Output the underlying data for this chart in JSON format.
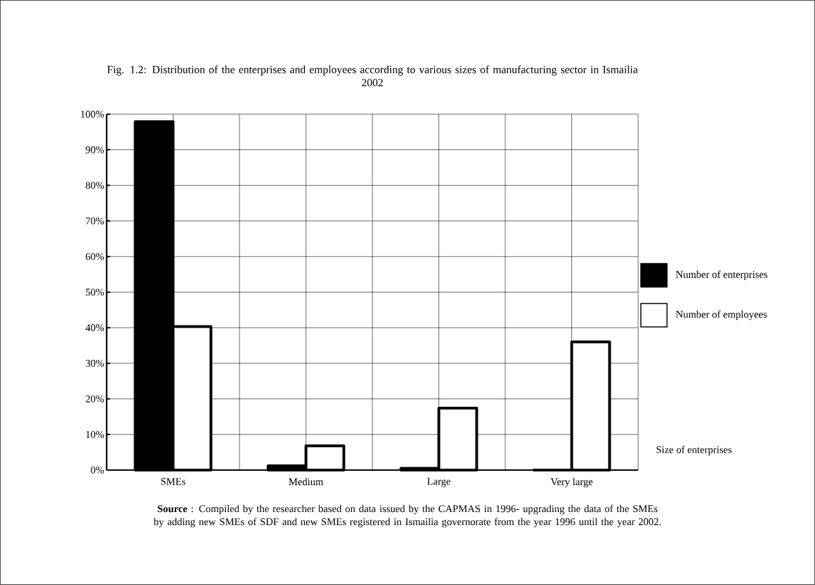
{
  "chart_data": {
    "type": "bar",
    "title": "Fig. 1.2: Distribution of the enterprises and employees according to various sizes of manufacturing sector in Ismailia 2002",
    "xlabel": "Size of enterprises",
    "categories": [
      "SMEs",
      "Medium",
      "Large",
      "Very large"
    ],
    "series": [
      {
        "name": "Number of enterprises",
        "color": "#000000",
        "values": [
          97.9,
          1.2,
          0.5,
          0
        ]
      },
      {
        "name": "Number of employees",
        "color": "#ffffff",
        "values": [
          40.3,
          6.8,
          17.4,
          36
        ]
      }
    ],
    "ylim": [
      0,
      100
    ],
    "yticks": [
      {
        "value": 0,
        "label": "0%"
      },
      {
        "value": 10,
        "label": "10%"
      },
      {
        "value": 20,
        "label": "20%"
      },
      {
        "value": 30,
        "label": "30%"
      },
      {
        "value": 40,
        "label": "40%"
      },
      {
        "value": 50,
        "label": "50%"
      },
      {
        "value": 60,
        "label": "60%"
      },
      {
        "value": 70,
        "label": "70%"
      },
      {
        "value": 80,
        "label": "80%"
      },
      {
        "value": 90,
        "label": "90%"
      },
      {
        "value": 100,
        "label": "100%"
      }
    ],
    "grid": true,
    "legend": "right",
    "annotations": [
      "**Source** : Compiled by the researcher based on data issued by the CAPMAS  in 1996- upgrading the data of the SMEs by adding new SMEs of SDF and new SMEs registered in Ismailia governorate from the year 1996 until the year 2002."
    ]
  }
}
